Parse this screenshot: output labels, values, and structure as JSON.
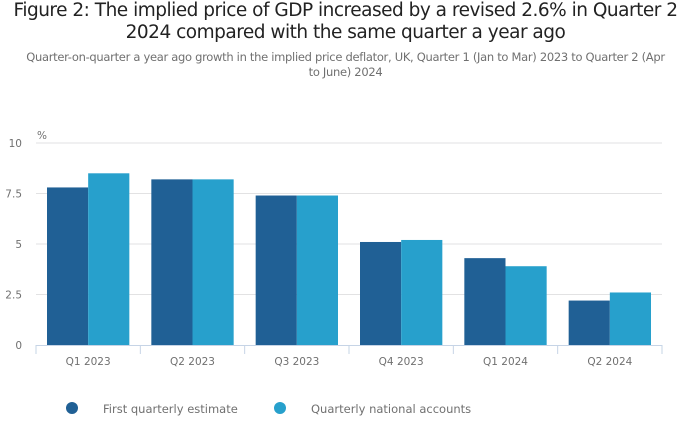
{
  "chart_data": {
    "type": "bar",
    "title": "Figure 2: The implied price of GDP increased by a revised 2.6% in Quarter 2 2024 compared with the same quarter a year ago",
    "subtitle": "Quarter-on-quarter a year ago growth in the implied price deflator, UK, Quarter 1 (Jan to Mar) 2023 to Quarter 2 (Apr to June) 2024",
    "xlabel": "",
    "ylabel": "%",
    "ylim": [
      0,
      10
    ],
    "yticks": [
      0,
      2.5,
      5,
      7.5,
      10
    ],
    "ytick_labels": [
      "0",
      "2.5",
      "5",
      "7.5",
      "10"
    ],
    "grid": true,
    "legend_position": "bottom-left",
    "categories": [
      "Q1 2023",
      "Q2 2023",
      "Q3 2023",
      "Q4 2023",
      "Q1 2024",
      "Q2 2024"
    ],
    "series": [
      {
        "name": "First quarterly estimate",
        "color": "#206095",
        "values": [
          7.8,
          8.2,
          7.4,
          5.1,
          4.3,
          2.2
        ]
      },
      {
        "name": "Quarterly national accounts",
        "color": "#27a0cc",
        "values": [
          8.5,
          8.2,
          7.4,
          5.2,
          3.9,
          2.6
        ]
      }
    ]
  }
}
